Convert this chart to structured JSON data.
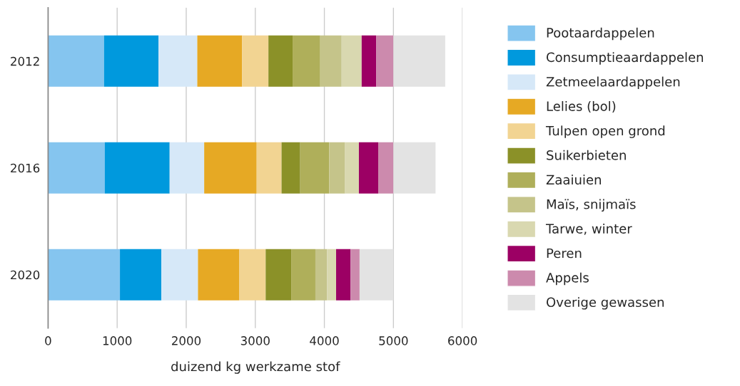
{
  "chart_data": {
    "type": "bar",
    "orientation": "horizontal",
    "stacked": true,
    "xlabel": "duizend kg werkzame stof",
    "categories": [
      "2012",
      "2016",
      "2020"
    ],
    "xlim": [
      0,
      6000
    ],
    "xticks": [
      0,
      1000,
      2000,
      3000,
      4000,
      5000,
      6000
    ],
    "grid": "x",
    "legend": "right",
    "series": [
      {
        "name": "Pootaardappelen",
        "color": "#85c5ef",
        "values": [
          810,
          820,
          1040
        ]
      },
      {
        "name": "Consumptieaardappelen",
        "color": "#0099dd",
        "values": [
          790,
          940,
          600
        ]
      },
      {
        "name": "Zetmeelaardappelen",
        "color": "#d6e8f8",
        "values": [
          560,
          500,
          530
        ]
      },
      {
        "name": "Lelies (bol)",
        "color": "#e6a924",
        "values": [
          650,
          760,
          600
        ]
      },
      {
        "name": "Tulpen open grond",
        "color": "#f2d492",
        "values": [
          380,
          360,
          380
        ]
      },
      {
        "name": "Suikerbieten",
        "color": "#8b9128",
        "values": [
          350,
          270,
          370
        ]
      },
      {
        "name": "Zaaiuien",
        "color": "#afaf5a",
        "values": [
          400,
          420,
          350
        ]
      },
      {
        "name": "Maïs, snijmaïs",
        "color": "#c5c48a",
        "values": [
          310,
          230,
          170
        ]
      },
      {
        "name": "Tarwe, winter",
        "color": "#d9d8b0",
        "values": [
          290,
          200,
          130
        ]
      },
      {
        "name": "Peren",
        "color": "#9c0064",
        "values": [
          210,
          280,
          210
        ]
      },
      {
        "name": "Appels",
        "color": "#cc8aad",
        "values": [
          250,
          220,
          130
        ]
      },
      {
        "name": "Overige gewassen",
        "color": "#e3e3e3",
        "values": [
          750,
          610,
          490
        ]
      }
    ]
  }
}
